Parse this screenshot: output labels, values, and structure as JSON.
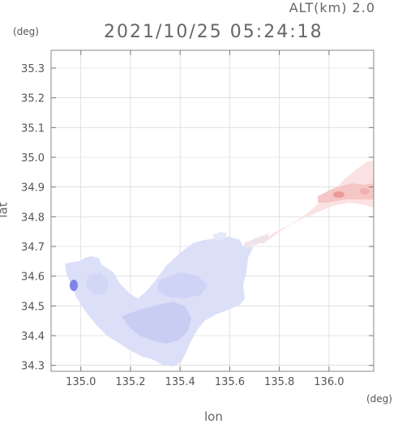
{
  "header": {
    "alt_label": "ALT(km) 2.0",
    "timestamp": "2021/10/25 05:24:18"
  },
  "axes": {
    "x_label": "lon",
    "y_label": "lat",
    "x_unit": "(deg)",
    "y_unit": "(deg)"
  },
  "chart_data": {
    "type": "heatmap",
    "xlabel": "lon",
    "ylabel": "lat",
    "xlim": [
      134.88,
      136.18
    ],
    "ylim": [
      34.28,
      35.36
    ],
    "x_ticks": [
      135.0,
      135.2,
      135.4,
      135.6,
      135.8,
      136.0
    ],
    "x_tick_labels": [
      "135.0",
      "135.2",
      "135.4",
      "135.6",
      "135.8",
      "136.0"
    ],
    "y_ticks": [
      34.3,
      34.4,
      34.5,
      34.6,
      34.7,
      34.8,
      34.9,
      35.0,
      35.1,
      35.2,
      35.3
    ],
    "y_tick_labels": [
      "34.3",
      "34.4",
      "34.5",
      "34.6",
      "34.7",
      "34.8",
      "34.9",
      "35.0",
      "35.1",
      "35.2",
      "35.3"
    ],
    "grid": true,
    "colors": {
      "negative": "#b4bbf2",
      "negative_strong": "#6f78e6",
      "positive": "#f6c4c4",
      "positive_strong": "#e88a8a"
    }
  }
}
